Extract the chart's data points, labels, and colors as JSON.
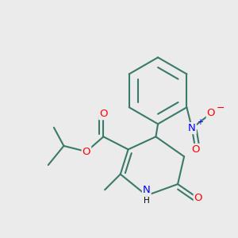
{
  "bg_color": "#ebebeb",
  "bond_color": "#3a7a6a",
  "bond_lw": 1.5,
  "fs": 9.5,
  "fs_small": 7.0,
  "figsize": [
    3.0,
    3.0
  ],
  "dpi": 100,
  "xlim": [
    -0.05,
    1.05
  ],
  "ylim": [
    -0.05,
    1.05
  ]
}
